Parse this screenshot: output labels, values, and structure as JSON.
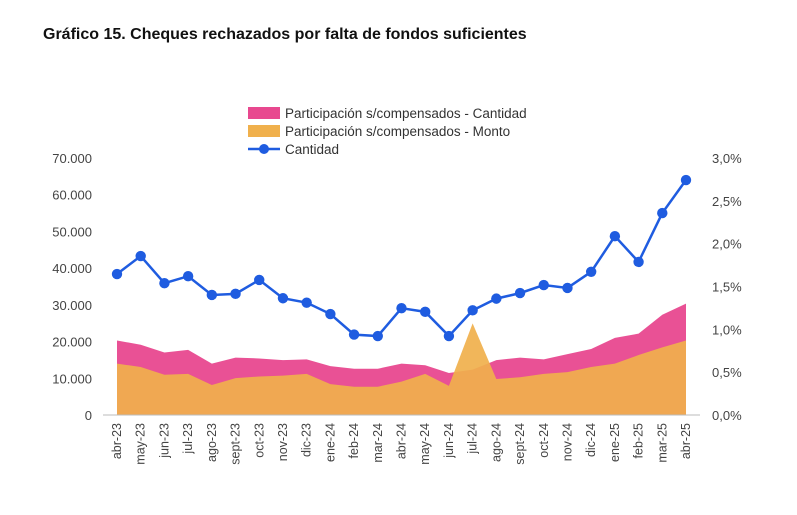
{
  "page": {
    "title": "Gráfico 15. Cheques rechazados por falta de fondos suficientes"
  },
  "chart_data": {
    "type": "area",
    "title": "Gráfico 15. Cheques rechazados por falta de fondos suficientes",
    "categories": [
      "abr-23",
      "may-23",
      "jun-23",
      "jul-23",
      "ago-23",
      "sept-23",
      "oct-23",
      "nov-23",
      "dic-23",
      "ene-24",
      "feb-24",
      "mar-24",
      "abr-24",
      "may-24",
      "jun-24",
      "jul-24",
      "ago-24",
      "sept-24",
      "oct-24",
      "nov-24",
      "dic-24",
      "ene-25",
      "feb-25",
      "mar-25",
      "abr-25"
    ],
    "y_left": {
      "ylim": [
        0,
        70000
      ],
      "ticks": [
        "0",
        "10.000",
        "20.000",
        "30.000",
        "40.000",
        "50.000",
        "60.000",
        "70.000"
      ],
      "tick_values": [
        0,
        10000,
        20000,
        30000,
        40000,
        50000,
        60000,
        70000
      ]
    },
    "y_right": {
      "ylim": [
        0,
        3.0
      ],
      "ticks": [
        "0,0%",
        "0,5%",
        "1,0%",
        "1,5%",
        "2,0%",
        "2,5%",
        "3,0%"
      ],
      "tick_values": [
        0,
        0.5,
        1.0,
        1.5,
        2.0,
        2.5,
        3.0
      ]
    },
    "series": [
      {
        "name": "Participación s/compensados - Cantidad",
        "type": "area",
        "axis": "right",
        "color": "#e8488f",
        "values": [
          0.87,
          0.82,
          0.73,
          0.76,
          0.6,
          0.67,
          0.66,
          0.64,
          0.65,
          0.57,
          0.54,
          0.54,
          0.6,
          0.58,
          0.49,
          0.53,
          0.64,
          0.67,
          0.65,
          0.71,
          0.77,
          0.9,
          0.95,
          1.17,
          1.3
        ]
      },
      {
        "name": "Participación s/compensados - Monto",
        "type": "area",
        "axis": "right",
        "color": "#f0b04c",
        "values": [
          0.6,
          0.56,
          0.47,
          0.48,
          0.35,
          0.43,
          0.45,
          0.46,
          0.48,
          0.36,
          0.33,
          0.33,
          0.39,
          0.48,
          0.34,
          1.07,
          0.42,
          0.44,
          0.48,
          0.5,
          0.56,
          0.6,
          0.7,
          0.79,
          0.87
        ]
      },
      {
        "name": "Cantidad",
        "type": "line",
        "axis": "left",
        "color": "#1f5ce0",
        "values": [
          38400,
          43300,
          35900,
          37800,
          32700,
          33000,
          36800,
          31800,
          30600,
          27500,
          21900,
          21500,
          29100,
          28100,
          21500,
          28500,
          31700,
          33200,
          35400,
          34600,
          39000,
          48700,
          41700,
          55000,
          64000
        ]
      }
    ],
    "legend": "top-center",
    "grid": false
  }
}
